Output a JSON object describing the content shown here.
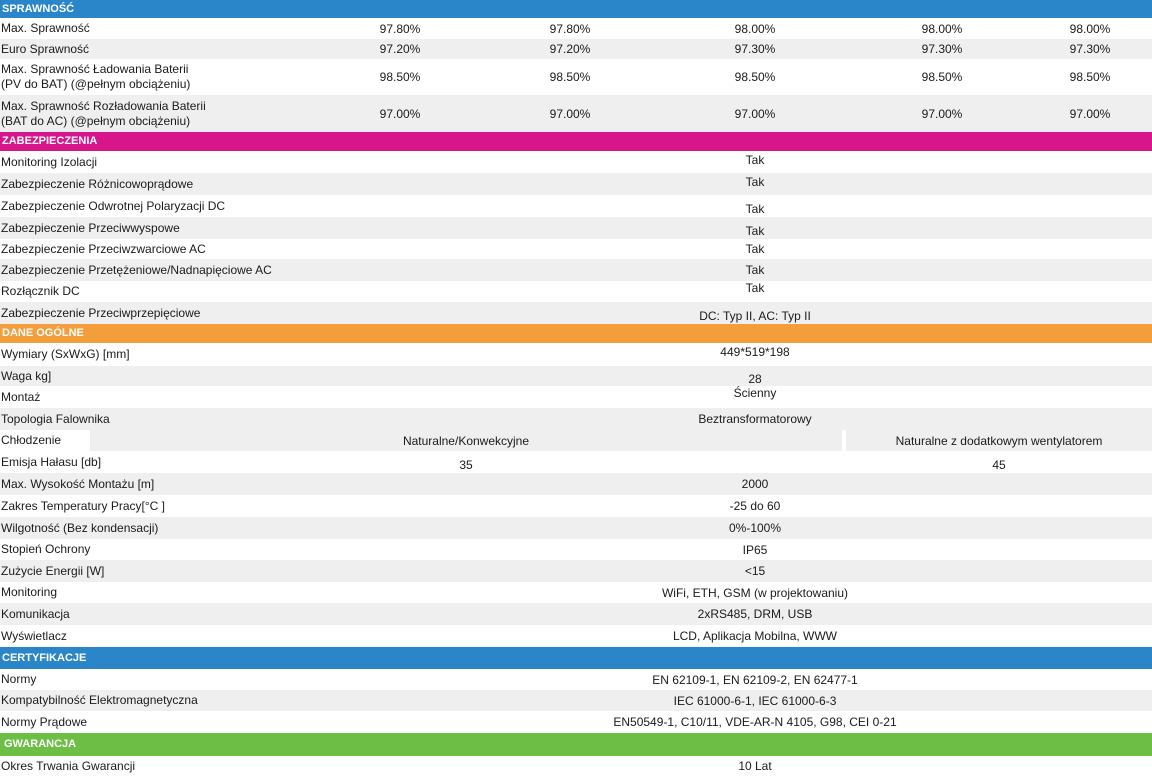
{
  "colors": {
    "sprawnosc": "#2a86c8",
    "zabezpieczenia": "#d8168c",
    "dane_ogolne": "#f39d3b",
    "certyfikacje": "#2a86c8",
    "gwarancja": "#6cbe45",
    "row_shade": "#efefef"
  },
  "sprawnosc": {
    "title": "SPRAWNOŚĆ",
    "rows": [
      {
        "label": "Max. Sprawność",
        "values": [
          "97.80%",
          "97.80%",
          "98.00%",
          "98.00%",
          "98.00%"
        ]
      },
      {
        "label": "Euro Sprawność",
        "values": [
          "97.20%",
          "97.20%",
          "97.30%",
          "97.30%",
          "97.30%"
        ]
      },
      {
        "label_line1": "Max. Sprawność Ładowania Baterii",
        "label_line2": "(PV do BAT) (@pełnym obciążeniu)",
        "values": [
          "98.50%",
          "98.50%",
          "98.50%",
          "98.50%",
          "98.50%"
        ]
      },
      {
        "label_line1": "Max. Sprawność Rozładowania Baterii",
        "label_line2": "(BAT do AC) (@pełnym obciążeniu)",
        "values": [
          "97.00%",
          "97.00%",
          "97.00%",
          "97.00%",
          "97.00%"
        ]
      }
    ]
  },
  "zabezpieczenia": {
    "title": "ZABEZPIECZENIA",
    "rows": [
      {
        "label": "Monitoring Izolacji",
        "value": "Tak"
      },
      {
        "label": "Zabezpieczenie Różnicowoprądowe",
        "value": "Tak"
      },
      {
        "label": "Zabezpieczenie Odwrotnej Polaryzacji DC",
        "value": "Tak"
      },
      {
        "label": "Zabezpieczenie Przeciwwyspowe",
        "value": "Tak"
      },
      {
        "label": "Zabezpieczenie Przeciwzwarciowe AC",
        "value": "Tak"
      },
      {
        "label": "Zabezpieczenie Przetężeniowe/Nadnapięciowe AC",
        "value": "Tak"
      },
      {
        "label": "Rozłącznik DC",
        "value": "Tak"
      },
      {
        "label": "Zabezpieczenie Przeciwprzepięciowe",
        "value": "DC: Typ II, AC: Typ II"
      }
    ]
  },
  "dane_ogolne": {
    "title": "DANE OGÓLNE",
    "wymiary": {
      "label": "Wymiary (SxWxG) [mm]",
      "value": "449*519*198"
    },
    "waga": {
      "label": "Waga kg]",
      "value": "28"
    },
    "montaz": {
      "label": "Montaż",
      "value": "Ścienny"
    },
    "topologia": {
      "label": "Topologia Falownika",
      "value": "Beztransformatorowy"
    },
    "chlodzenie": {
      "label": "Chłodzenie",
      "value_a": "Naturalne/Konwekcyjne",
      "value_b": "Naturalne z dodatkowym wentylatorem"
    },
    "halas": {
      "label": "Emisja Hałasu [db]",
      "value_a": "35",
      "value_b": "45"
    },
    "wysokosc": {
      "label": "Max. Wysokość Montażu [m]",
      "value": "2000"
    },
    "temperatura": {
      "label": "Zakres Temperatury Pracy[°C ]",
      "value": "-25 do 60"
    },
    "wilgotnosc": {
      "label": "Wilgotność (Bez kondensacji)",
      "value": "0%-100%"
    },
    "ochrona": {
      "label": "Stopień Ochrony",
      "value": "IP65"
    },
    "zuzycie": {
      "label": "Zużycie Energii [W]",
      "value": "<15"
    },
    "monitoring": {
      "label": "Monitoring",
      "value": "WiFi, ETH, GSM (w projektowaniu)"
    },
    "komunikacja": {
      "label": "Komunikacja",
      "value": "2xRS485, DRM, USB"
    },
    "wyswietlacz": {
      "label": "Wyświetlacz",
      "value": "LCD, Aplikacja Mobilna, WWW"
    }
  },
  "certyfikacje": {
    "title": "CERTYFIKACJE",
    "normy": {
      "label": "Normy",
      "value": "EN 62109-1, EN 62109-2, EN 62477-1"
    },
    "emc": {
      "label": "Kompatybilność Elektromagnetyczna",
      "value": "IEC 61000-6-1, IEC 61000-6-3"
    },
    "pradowe": {
      "label": "Normy Prądowe",
      "value": "EN50549-1, C10/11, VDE-AR-N 4105, G98, CEI 0-21"
    }
  },
  "gwarancja": {
    "title": "GWARANCJA",
    "okres": {
      "label": "Okres Trwania Gwarancji",
      "value": "10 Lat"
    }
  }
}
